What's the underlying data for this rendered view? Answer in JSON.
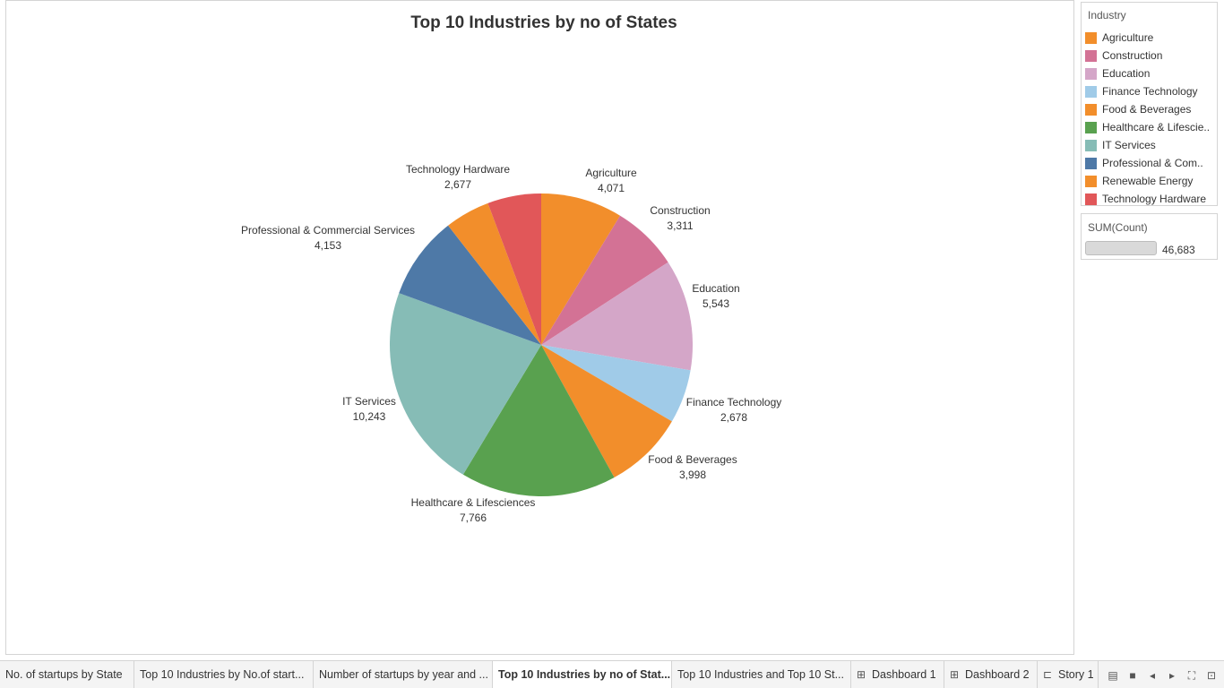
{
  "chart_data": {
    "type": "pie",
    "title": "Top 10 Industries by no of States",
    "slices": [
      {
        "label": "Agriculture",
        "value": 4071,
        "value_text": "4,071",
        "color": "#f28e2b"
      },
      {
        "label": "Construction",
        "value": 3311,
        "value_text": "3,311",
        "color": "#d37295"
      },
      {
        "label": "Education",
        "value": 5543,
        "value_text": "5,543",
        "color": "#d4a6c8"
      },
      {
        "label": "Finance Technology",
        "value": 2678,
        "value_text": "2,678",
        "color": "#a0cbe8"
      },
      {
        "label": "Food & Beverages",
        "value": 3998,
        "value_text": "3,998",
        "color": "#f28e2b"
      },
      {
        "label": "Healthcare & Lifesciences",
        "value": 7766,
        "value_text": "7,766",
        "color": "#59a14f"
      },
      {
        "label": "IT Services",
        "value": 10243,
        "value_text": "10,243",
        "color": "#86bcb6"
      },
      {
        "label": "Professional & Commercial Services",
        "value": 4153,
        "value_text": "4,153",
        "color": "#4e79a7"
      },
      {
        "label": "Renewable Energy",
        "value": 2243,
        "value_text": "",
        "color": "#f28e2b"
      },
      {
        "label": "Technology Hardware",
        "value": 2677,
        "value_text": "2,677",
        "color": "#e15759"
      }
    ]
  },
  "legend": {
    "title": "Industry",
    "items": [
      {
        "label": "Agriculture",
        "color": "#f28e2b"
      },
      {
        "label": "Construction",
        "color": "#d37295"
      },
      {
        "label": "Education",
        "color": "#d4a6c8"
      },
      {
        "label": "Finance Technology",
        "color": "#a0cbe8"
      },
      {
        "label": "Food & Beverages",
        "color": "#f28e2b"
      },
      {
        "label": "Healthcare & Lifescie..",
        "color": "#59a14f"
      },
      {
        "label": "IT Services",
        "color": "#86bcb6"
      },
      {
        "label": "Professional & Com..",
        "color": "#4e79a7"
      },
      {
        "label": "Renewable Energy",
        "color": "#f28e2b"
      },
      {
        "label": "Technology Hardware",
        "color": "#e15759"
      }
    ]
  },
  "size_legend": {
    "title": "SUM(Count)",
    "value": "46,683"
  },
  "tabs": [
    {
      "label": "No. of startups by State",
      "icon": ""
    },
    {
      "label": "Top 10 Industries by No.of start...",
      "icon": ""
    },
    {
      "label": "Number of startups by year and ...",
      "icon": ""
    },
    {
      "label": "Top 10 Industries by no of Stat...",
      "icon": ""
    },
    {
      "label": "Top 10 Industries and Top 10 St...",
      "icon": ""
    },
    {
      "label": "Dashboard 1",
      "icon": "⊞"
    },
    {
      "label": "Dashboard 2",
      "icon": "⊞"
    },
    {
      "label": "Story 1",
      "icon": "⊏"
    }
  ],
  "active_tab": 3,
  "nav_icons": {
    "sheet_sorter": "▤",
    "filmstrip": "■",
    "prev": "◂",
    "next": "▸",
    "fullscreen": "⛶",
    "presentation": "⊡"
  }
}
